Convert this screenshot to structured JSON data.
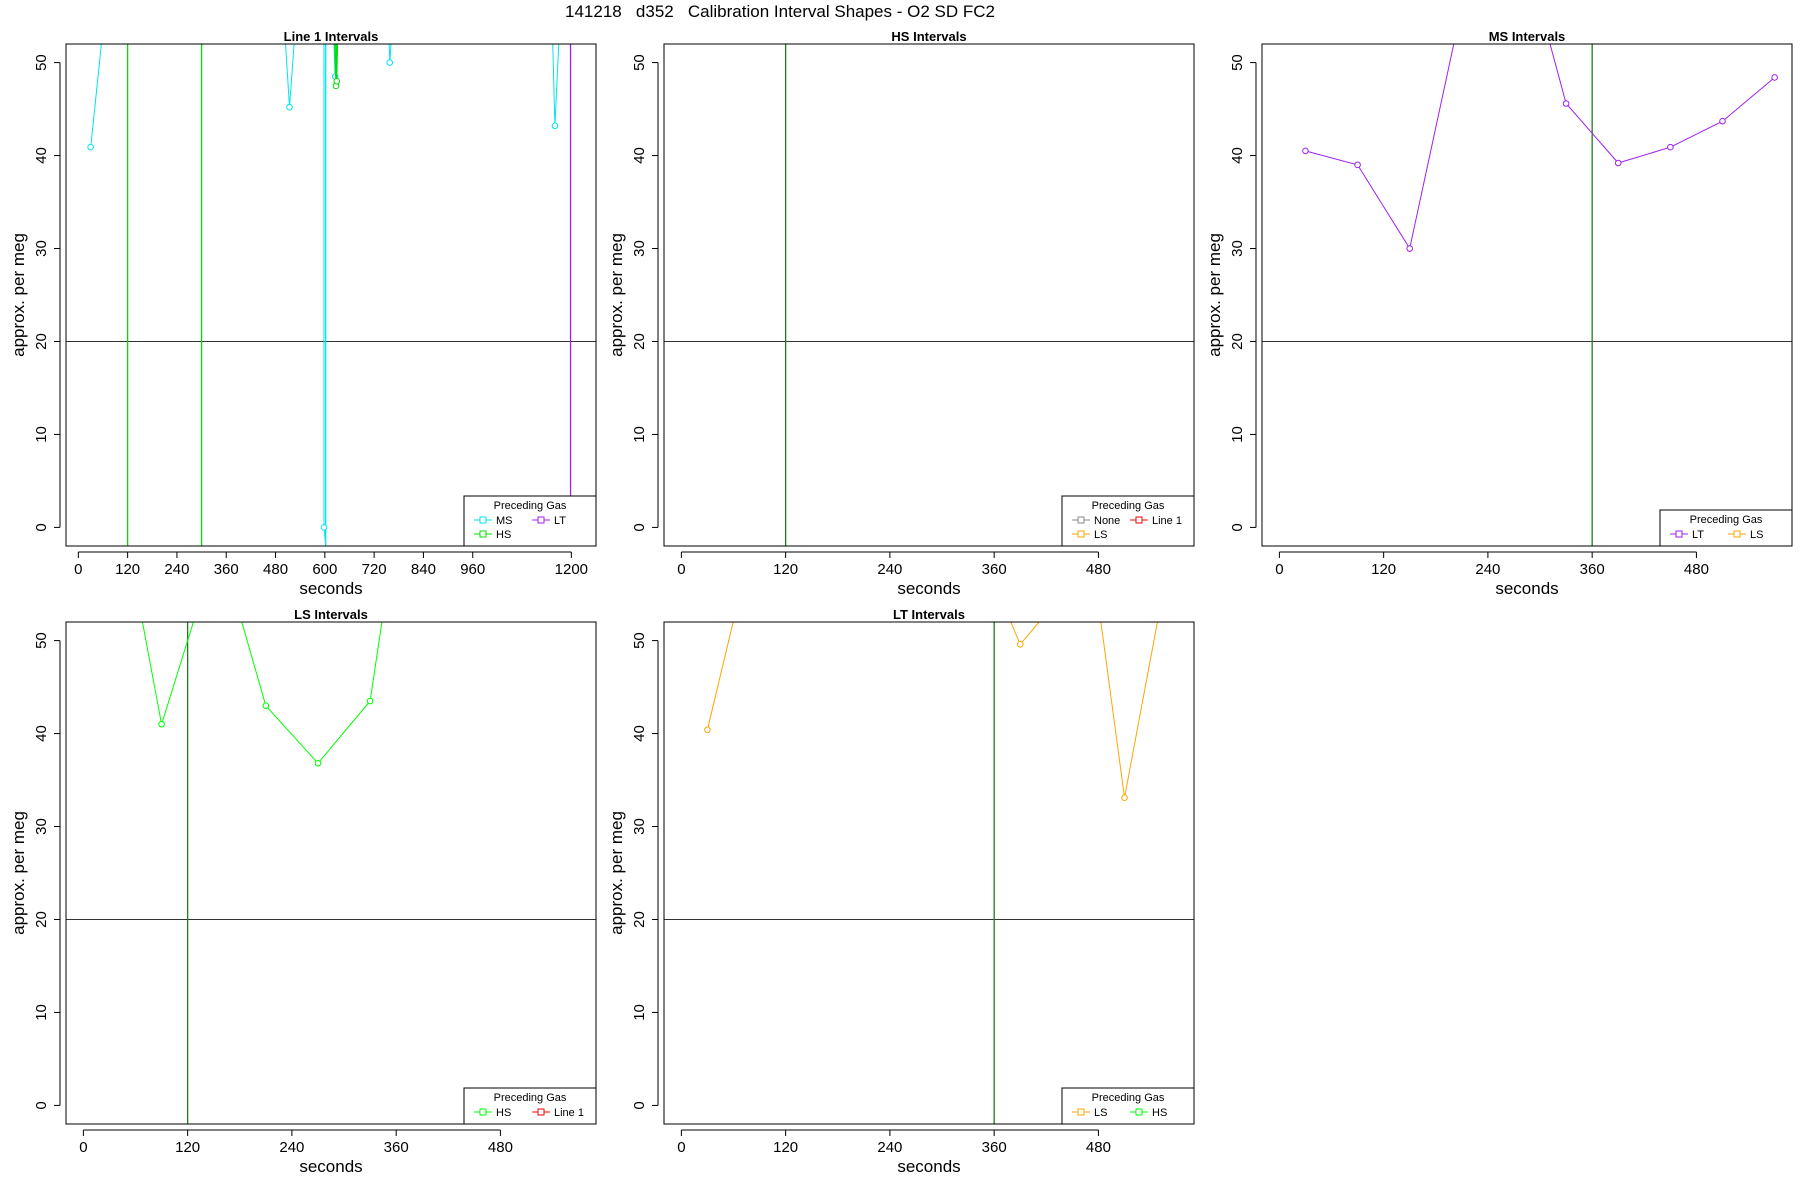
{
  "page_title": "141218   d352   Calibration Interval Shapes - O2 SD FC2",
  "colors": {
    "cyan": "#00e5ee",
    "green": "#00dd00",
    "darkgreen": "#1e7b1e",
    "purple": "#a020f0",
    "orange": "#ffa500",
    "gray": "#888888",
    "red": "#ff0000"
  },
  "chart_data": [
    {
      "type": "line",
      "title": "Line 1 Intervals",
      "xlabel": "seconds",
      "ylabel": "approx. per meg",
      "xlim": [
        -30,
        1260
      ],
      "ylim": [
        -2,
        52
      ],
      "xticks": [
        0,
        120,
        240,
        360,
        480,
        600,
        720,
        840,
        960,
        1200
      ],
      "yticks": [
        0,
        10,
        20,
        30,
        40,
        50
      ],
      "hline": 20,
      "vlines": [
        {
          "x": 120,
          "color": "#00dd00"
        },
        {
          "x": 300,
          "color": "#00dd00"
        },
        {
          "x": 602,
          "color": "#00e5ee"
        },
        {
          "x": 1198,
          "color": "#a020f0"
        }
      ],
      "legend": {
        "title": "Preceding Gas",
        "position": "bottom-right",
        "rows": [
          [
            {
              "label": "MS",
              "color": "#00e5ee"
            },
            {
              "label": "LT",
              "color": "#a020f0"
            }
          ],
          [
            {
              "label": "HS",
              "color": "#00dd00"
            }
          ]
        ]
      },
      "series": [
        {
          "color": "#00e5ee",
          "points": [
            [
              30,
              40.9
            ],
            [
              75,
              60
            ]
          ]
        },
        {
          "color": "#00e5ee",
          "points": [
            [
              500,
              55
            ],
            [
              514,
              45.2
            ],
            [
              535,
              58
            ]
          ]
        },
        {
          "color": "#00e5ee",
          "points": [
            [
              598,
              58
            ],
            [
              598,
              0
            ],
            [
              602,
              -2
            ]
          ]
        },
        {
          "color": "#00e5ee",
          "points": [
            [
              618,
              58
            ],
            [
              625,
              48.5
            ],
            [
              632,
              58
            ]
          ]
        },
        {
          "color": "#00dd00",
          "points": [
            [
              620,
              58
            ],
            [
              627,
              47.5
            ],
            [
              632,
              58
            ]
          ]
        },
        {
          "color": "#00dd00",
          "points": [
            [
              622,
              58
            ],
            [
              629,
              48
            ],
            [
              634,
              58
            ]
          ]
        },
        {
          "color": "#00e5ee",
          "points": [
            [
              752,
              58
            ],
            [
              758,
              50
            ],
            [
              770,
              58
            ]
          ]
        },
        {
          "color": "#00e5ee",
          "points": [
            [
              1150,
              60
            ],
            [
              1160,
              43.2
            ],
            [
              1178,
              60
            ]
          ]
        },
        {
          "color": "#00dd00",
          "points": [
            [
              270,
              52.3
            ],
            [
              282,
              52.3
            ]
          ]
        },
        {
          "color": "#00e5ee",
          "points": [
            [
              920,
              52.3
            ],
            [
              935,
              52.3
            ]
          ]
        }
      ]
    },
    {
      "type": "line",
      "title": "HS Intervals",
      "xlabel": "seconds",
      "ylabel": "approx. per meg",
      "xlim": [
        -20,
        590
      ],
      "ylim": [
        -2,
        52
      ],
      "xticks": [
        0,
        120,
        240,
        360,
        480
      ],
      "yticks": [
        0,
        10,
        20,
        30,
        40,
        50
      ],
      "hline": 20,
      "vlines": [
        {
          "x": 120,
          "color": "#1e7b1e"
        }
      ],
      "legend": {
        "title": "Preceding Gas",
        "position": "bottom-right",
        "rows": [
          [
            {
              "label": "None",
              "color": "#888888"
            },
            {
              "label": "Line 1",
              "color": "#ff0000"
            }
          ],
          [
            {
              "label": "LS",
              "color": "#ffa500"
            }
          ]
        ]
      },
      "series": []
    },
    {
      "type": "line",
      "title": "MS Intervals",
      "xlabel": "seconds",
      "ylabel": "approx. per meg",
      "xlim": [
        -20,
        590
      ],
      "ylim": [
        -2,
        52
      ],
      "xticks": [
        0,
        120,
        240,
        360,
        480
      ],
      "yticks": [
        0,
        10,
        20,
        30,
        40,
        50
      ],
      "hline": 20,
      "vlines": [
        {
          "x": 360,
          "color": "#1e7b1e"
        }
      ],
      "legend": {
        "title": "Preceding Gas",
        "position": "bottom-right",
        "rows": [
          [
            {
              "label": "LT",
              "color": "#a020f0"
            },
            {
              "label": "LS",
              "color": "#ffa500"
            }
          ]
        ]
      },
      "series": [
        {
          "color": "#a020f0",
          "points": [
            [
              30,
              40.5
            ],
            [
              90,
              39
            ],
            [
              150,
              30
            ],
            [
              210,
              56
            ],
            [
              300,
              56
            ],
            [
              330,
              45.6
            ],
            [
              390,
              39.2
            ],
            [
              450,
              40.9
            ],
            [
              510,
              43.7
            ],
            [
              570,
              48.4
            ]
          ]
        }
      ]
    },
    {
      "type": "line",
      "title": "LS Intervals",
      "xlabel": "seconds",
      "ylabel": "approx. per meg",
      "xlim": [
        -20,
        590
      ],
      "ylim": [
        -2,
        52
      ],
      "xticks": [
        0,
        120,
        240,
        360,
        480
      ],
      "yticks": [
        0,
        10,
        20,
        30,
        40,
        50
      ],
      "hline": 20,
      "vlines": [
        {
          "x": 120,
          "color": "#1e7b1e"
        }
      ],
      "legend": {
        "title": "Preceding Gas",
        "position": "bottom-right",
        "rows": [
          [
            {
              "label": "HS",
              "color": "#00ff00"
            },
            {
              "label": "Line 1",
              "color": "#ff0000"
            }
          ]
        ]
      },
      "series": [
        {
          "color": "#00ff00",
          "points": [
            [
              60,
              56
            ],
            [
              90,
              41
            ],
            [
              140,
              56
            ],
            [
              170,
              56
            ],
            [
              210,
              43
            ],
            [
              270,
              36.8
            ],
            [
              330,
              43.5
            ],
            [
              350,
              56
            ]
          ]
        }
      ]
    },
    {
      "type": "line",
      "title": "LT Intervals",
      "xlabel": "seconds",
      "ylabel": "approx. per meg",
      "xlim": [
        -20,
        590
      ],
      "ylim": [
        -2,
        52
      ],
      "xticks": [
        0,
        120,
        240,
        360,
        480
      ],
      "yticks": [
        0,
        10,
        20,
        30,
        40,
        50
      ],
      "hline": 20,
      "vlines": [
        {
          "x": 360,
          "color": "#1e7b1e"
        }
      ],
      "legend": {
        "title": "Preceding Gas",
        "position": "bottom-right",
        "rows": [
          [
            {
              "label": "LS",
              "color": "#ffa500"
            },
            {
              "label": "HS",
              "color": "#00ff00"
            }
          ]
        ]
      },
      "series": [
        {
          "color": "#ffa500",
          "points": [
            [
              30,
              40.4
            ],
            [
              75,
              58
            ]
          ]
        },
        {
          "color": "#ffa500",
          "points": [
            [
              370,
              54
            ],
            [
              390,
              49.6
            ],
            [
              430,
              54
            ],
            [
              480,
              54
            ],
            [
              510,
              33.1
            ],
            [
              560,
              58
            ]
          ]
        }
      ]
    }
  ]
}
